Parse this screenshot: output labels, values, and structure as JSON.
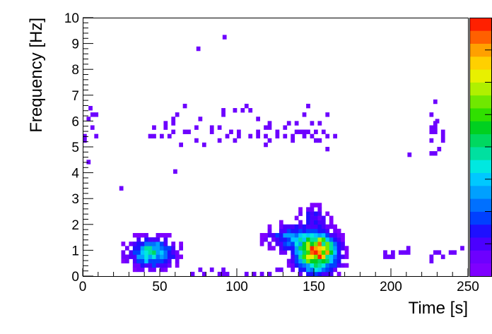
{
  "chart_data": {
    "type": "heatmap",
    "title": "",
    "xlabel": "Time [s]",
    "ylabel": "Frequency [Hz]",
    "xlim": [
      0,
      250
    ],
    "ylim": [
      0,
      10
    ],
    "x_ticks": [
      "0",
      "50",
      "100",
      "150",
      "200",
      "250"
    ],
    "y_ticks": [
      "0",
      "1",
      "2",
      "3",
      "4",
      "5",
      "6",
      "7",
      "8",
      "9",
      "10"
    ],
    "bin_width_x": 2.5,
    "bin_width_y": 0.1667,
    "zlim": [
      0,
      20
    ],
    "colormap": [
      "#7f00ff",
      "#6d00ff",
      "#4b00ff",
      "#1e10ff",
      "#0040ff",
      "#0070ff",
      "#00a0ff",
      "#00c8ff",
      "#00e8e0",
      "#00e0a0",
      "#00d860",
      "#00d020",
      "#30e000",
      "#70e800",
      "#b0f000",
      "#e8f000",
      "#ffd000",
      "#ffa000",
      "#ff6000",
      "#ff2000"
    ],
    "hotspots": [
      {
        "t": 45,
        "f": 0.9,
        "sigma_t": 9,
        "sigma_f": 0.35,
        "peak": 9
      },
      {
        "t": 152,
        "f": 0.9,
        "sigma_t": 8,
        "sigma_f": 0.45,
        "peak": 20
      },
      {
        "t": 135,
        "f": 1.5,
        "sigma_t": 10,
        "sigma_f": 0.3,
        "peak": 5
      },
      {
        "t": 150,
        "f": 2.3,
        "sigma_t": 6,
        "sigma_f": 0.3,
        "peak": 3
      }
    ],
    "bands": [
      {
        "t_from": 40,
        "t_to": 165,
        "f": 5.5,
        "sigma_f": 0.25,
        "level": 1.5,
        "density": 0.35
      },
      {
        "t_from": 50,
        "t_to": 160,
        "f": 6.3,
        "sigma_f": 0.2,
        "level": 1,
        "density": 0.12
      },
      {
        "t_from": 195,
        "t_to": 250,
        "f": 0.85,
        "sigma_f": 0.15,
        "level": 1,
        "density": 0.4
      },
      {
        "t_from": 0,
        "t_to": 10,
        "f": 5.5,
        "sigma_f": 0.9,
        "level": 1,
        "density": 0.25
      },
      {
        "t_from": 225,
        "t_to": 235,
        "f": 5.5,
        "sigma_f": 0.6,
        "level": 1,
        "density": 0.25
      },
      {
        "t_from": 60,
        "t_to": 130,
        "f": 0.1,
        "sigma_f": 0.1,
        "level": 1,
        "density": 0.35
      }
    ],
    "isolated_points": [
      [
        92,
        9.25
      ],
      [
        75,
        8.8
      ],
      [
        5,
        6.5
      ],
      [
        25,
        3.4
      ],
      [
        212,
        4.7
      ],
      [
        60,
        4.05
      ],
      [
        230,
        6.0
      ]
    ]
  }
}
